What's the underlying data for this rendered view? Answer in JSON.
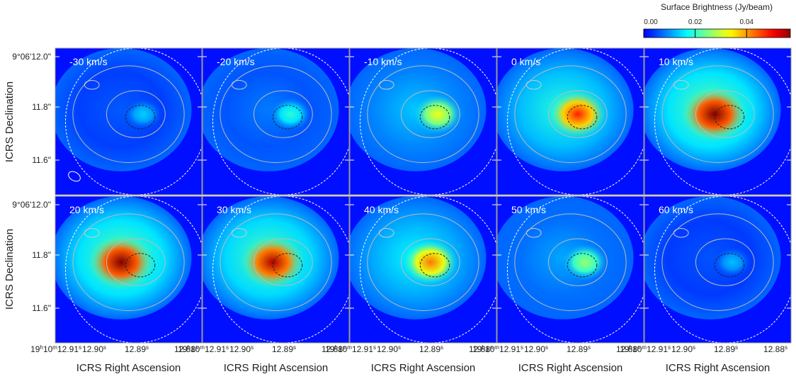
{
  "colorbar": {
    "title": "Surface Brightness (Jy/beam)",
    "lim": [
      0,
      0.057
    ],
    "ticks": [
      {
        "value": 0,
        "label": "0.00"
      },
      {
        "value": 0.02,
        "label": "0.02"
      },
      {
        "value": 0.04,
        "label": "0.04"
      }
    ]
  },
  "panels": [
    "-30 km/s",
    "-20 km/s",
    "-10 km/s",
    "0 km/s",
    "10 km/s",
    "20 km/s",
    "30 km/s",
    "40 km/s",
    "50 km/s",
    "60 km/s"
  ],
  "y_axis": {
    "label": "ICRS Declination",
    "ticks": [
      "9°06'12.0\"",
      "11.8\"",
      "11.6\""
    ]
  },
  "x_axis": {
    "label": "ICRS Right Ascension",
    "ticks": [
      [
        "19",
        "h",
        "10",
        "m",
        "12.91",
        "s"
      ],
      [
        "12.90",
        "s"
      ],
      [
        "12.89",
        "s"
      ],
      [
        "12.88",
        "s"
      ]
    ]
  }
}
